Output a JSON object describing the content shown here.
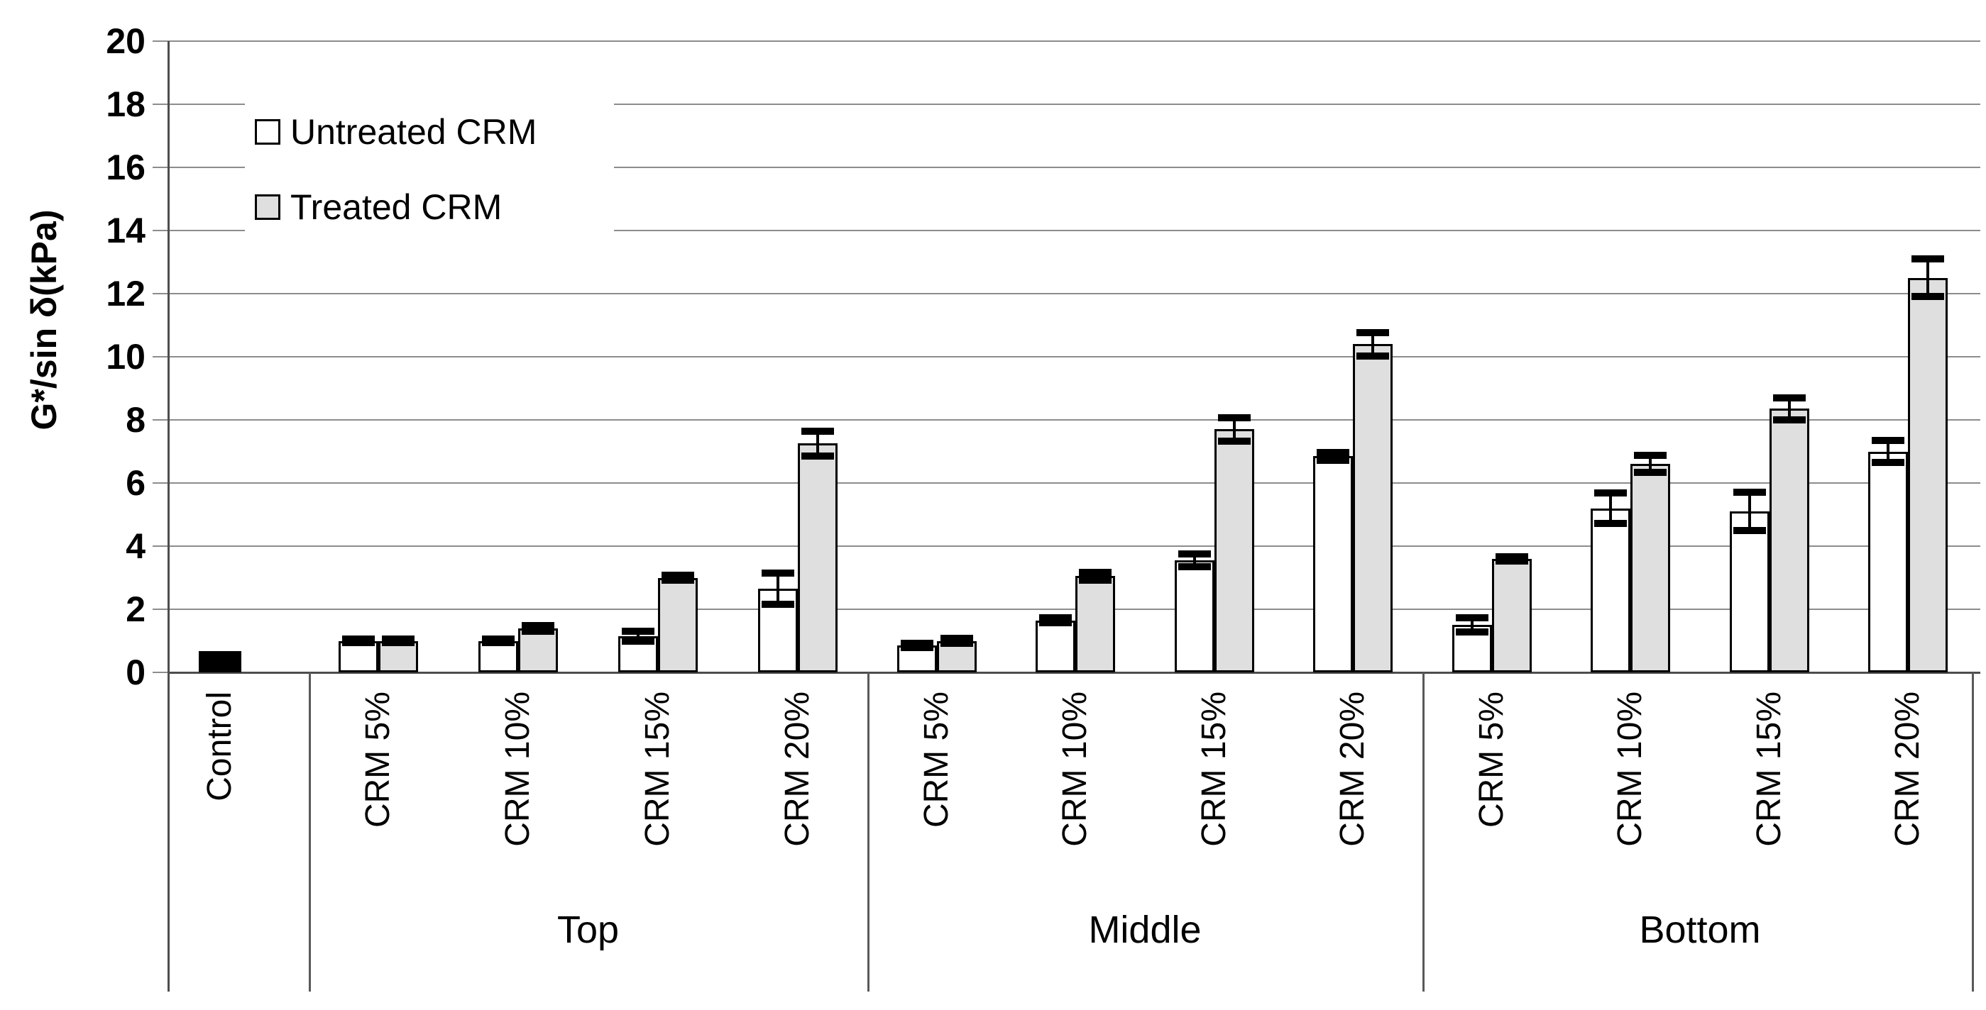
{
  "chart_data": {
    "type": "bar",
    "title": "",
    "ylabel": "G*/sin δ(kPa)",
    "xlabel": "",
    "ylim": [
      0,
      20
    ],
    "ytick_step": 2,
    "y_ticks": [
      0,
      2,
      4,
      6,
      8,
      10,
      12,
      14,
      16,
      18,
      20
    ],
    "grid": "horizontal",
    "legend_position": "upper-left-inside",
    "legend": [
      {
        "name": "Untreated CRM",
        "fill": "#ffffff"
      },
      {
        "name": "Treated CRM",
        "fill": "#dfdfdf"
      }
    ],
    "control": {
      "label": "Control",
      "value": 0.67,
      "color": "#000000"
    },
    "groups": [
      {
        "label": "Top",
        "categories": [
          "CRM 5%",
          "CRM 10%",
          "CRM 15%",
          "CRM 20%"
        ],
        "series": [
          {
            "name": "Untreated CRM",
            "values": [
              1.0,
              1.0,
              1.15,
              2.65
            ],
            "errors": [
              0.06,
              0.06,
              0.15,
              0.5
            ]
          },
          {
            "name": "Treated CRM",
            "values": [
              1.0,
              1.4,
              3.0,
              7.25
            ],
            "errors": [
              0.06,
              0.09,
              0.08,
              0.4
            ]
          }
        ]
      },
      {
        "label": "Middle",
        "categories": [
          "CRM 5%",
          "CRM 10%",
          "CRM 15%",
          "CRM 20%"
        ],
        "series": [
          {
            "name": "Untreated CRM",
            "values": [
              0.85,
              1.65,
              3.55,
              6.85
            ],
            "errors": [
              0.07,
              0.07,
              0.2,
              0.12
            ]
          },
          {
            "name": "Treated CRM",
            "values": [
              1.0,
              3.05,
              7.7,
              10.4
            ],
            "errors": [
              0.08,
              0.12,
              0.37,
              0.37
            ]
          }
        ]
      },
      {
        "label": "Bottom",
        "categories": [
          "CRM 5%",
          "CRM 10%",
          "CRM 15%",
          "CRM 20%"
        ],
        "series": [
          {
            "name": "Untreated CRM",
            "values": [
              1.5,
              5.2,
              5.1,
              7.0
            ],
            "errors": [
              0.22,
              0.48,
              0.6,
              0.35
            ]
          },
          {
            "name": "Treated CRM",
            "values": [
              3.6,
              6.6,
              8.35,
              12.5
            ],
            "errors": [
              0.07,
              0.27,
              0.35,
              0.6
            ]
          }
        ]
      }
    ],
    "colors": {
      "untreated_fill": "#ffffff",
      "treated_fill": "#dfdfdf",
      "control_fill": "#000000",
      "bar_border": "#000000",
      "gridline": "#8c8c8c",
      "axis": "#4d4d4d",
      "error_bar": "#000000"
    }
  }
}
